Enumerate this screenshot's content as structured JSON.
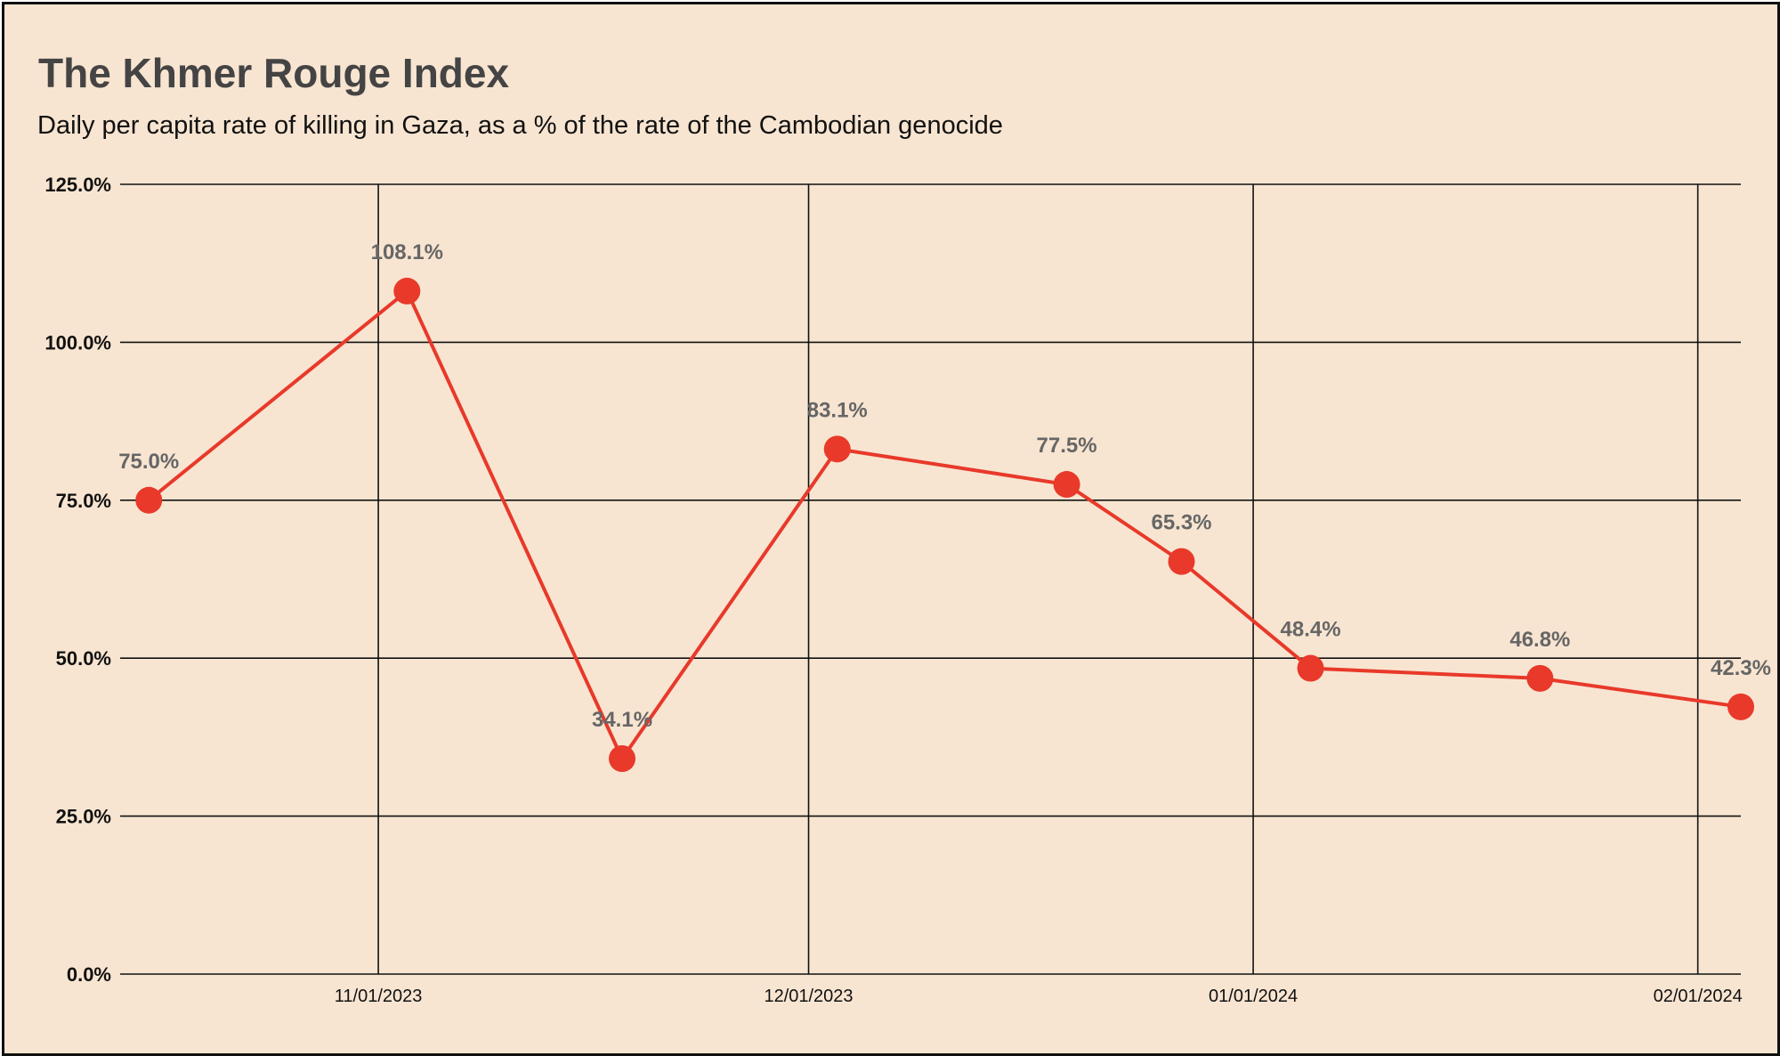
{
  "title": "The Khmer Rouge Index",
  "subtitle": "Daily per capita rate of killing in Gaza, as a % of the rate of the Cambodian genocide",
  "chart_data": {
    "type": "line",
    "title": "The Khmer Rouge Index",
    "subtitle": "Daily per capita rate of killing in Gaza, as a % of the rate of the Cambodian genocide",
    "xlabel": "",
    "ylabel": "",
    "ylim": [
      0,
      125
    ],
    "xlim": [
      "2023-10-14",
      "2024-02-04"
    ],
    "yticks": [
      0,
      25,
      50,
      75,
      100,
      125
    ],
    "ytick_labels": [
      "0.0%",
      "25.0%",
      "50.0%",
      "75.0%",
      "100.0%",
      "125.0%"
    ],
    "xticks": [
      "2023-11-01",
      "2023-12-01",
      "2024-01-01",
      "2024-02-01"
    ],
    "xtick_labels": [
      "11/01/2023",
      "12/01/2023",
      "01/01/2024",
      "02/01/2024"
    ],
    "grid": true,
    "legend": "none",
    "color": "#e8392a",
    "series": [
      {
        "x": [
          "2023-10-16",
          "2023-11-03",
          "2023-11-18",
          "2023-12-03",
          "2023-12-19",
          "2023-12-27",
          "2024-01-05",
          "2024-01-21",
          "2024-02-04"
        ],
        "values": [
          75.0,
          108.1,
          34.1,
          83.1,
          77.5,
          65.3,
          48.4,
          46.8,
          42.3
        ],
        "labels": [
          "75.0%",
          "108.1%",
          "34.1%",
          "83.1%",
          "77.5%",
          "65.3%",
          "48.4%",
          "46.8%",
          "42.3%"
        ]
      }
    ]
  }
}
